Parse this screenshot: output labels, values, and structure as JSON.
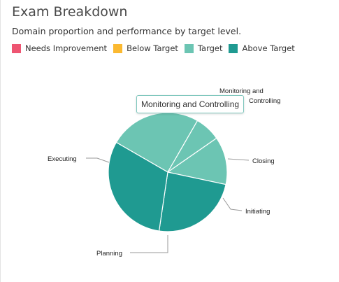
{
  "header": {
    "title": "Exam Breakdown",
    "subtitle": "Domain proportion and performance by target level."
  },
  "legend": [
    {
      "label": "Needs Improvement",
      "color": "#ee5572"
    },
    {
      "label": "Below Target",
      "color": "#fbb931"
    },
    {
      "label": "Target",
      "color": "#6cc5b3"
    },
    {
      "label": "Above Target",
      "color": "#1f9a91"
    }
  ],
  "tooltip": {
    "text": "Monitoring and Controlling"
  },
  "chart_data": {
    "type": "pie",
    "slices": [
      {
        "label": "Monitoring and Controlling",
        "value": 25,
        "level": "Target",
        "color": "#6cc5b3"
      },
      {
        "label": "Closing",
        "value": 7,
        "level": "Target",
        "color": "#6cc5b3"
      },
      {
        "label": "Initiating",
        "value": 13,
        "level": "Target",
        "color": "#6cc5b3"
      },
      {
        "label": "Planning",
        "value": 24,
        "level": "Above Target",
        "color": "#1f9a91"
      },
      {
        "label": "Executing",
        "value": 31,
        "level": "Above Target",
        "color": "#1f9a91"
      }
    ],
    "legend_position": "top-left"
  }
}
